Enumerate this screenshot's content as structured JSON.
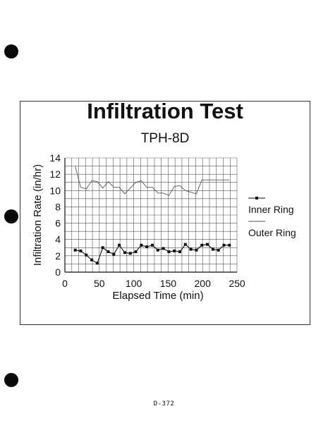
{
  "page": {
    "footer_text": "D-372"
  },
  "chart_data": {
    "type": "line",
    "title": "Infiltration Test",
    "subtitle": "TPH-8D",
    "xlabel": "Elapsed Time (min)",
    "ylabel": "Infiltration Rate (in/hr)",
    "xlim": [
      0,
      250
    ],
    "ylim": [
      0,
      14
    ],
    "xticks": [
      0,
      50,
      100,
      150,
      200,
      250
    ],
    "yticks": [
      0,
      2,
      4,
      6,
      8,
      10,
      12,
      14
    ],
    "grid": true,
    "legend_position": "right",
    "series": [
      {
        "name": "Inner Ring",
        "marker": "square",
        "color": "#111111",
        "x": [
          15,
          23,
          31,
          39,
          47,
          55,
          63,
          71,
          79,
          87,
          95,
          103,
          111,
          119,
          127,
          135,
          143,
          151,
          159,
          167,
          175,
          183,
          191,
          199,
          207,
          215,
          223,
          231,
          239
        ],
        "y": [
          2.7,
          2.6,
          2.1,
          1.5,
          1.1,
          3.0,
          2.5,
          2.2,
          3.3,
          2.4,
          2.3,
          2.5,
          3.3,
          3.1,
          3.3,
          2.7,
          2.9,
          2.5,
          2.6,
          2.5,
          3.4,
          2.8,
          2.7,
          3.3,
          3.4,
          2.8,
          2.7,
          3.3,
          3.3
        ]
      },
      {
        "name": "Outer Ring",
        "marker": "none",
        "color": "#555555",
        "x": [
          15,
          23,
          31,
          39,
          47,
          55,
          63,
          71,
          79,
          87,
          95,
          103,
          111,
          119,
          127,
          135,
          143,
          151,
          159,
          167,
          175,
          183,
          191,
          199,
          207,
          215,
          223,
          231,
          239
        ],
        "y": [
          13.0,
          10.4,
          10.2,
          11.2,
          11.1,
          10.3,
          11.1,
          10.4,
          10.4,
          9.6,
          10.3,
          11.0,
          11.2,
          10.4,
          10.4,
          9.7,
          9.7,
          9.4,
          10.5,
          10.6,
          10.0,
          9.8,
          9.6,
          11.3,
          11.3,
          11.3,
          11.3,
          11.3,
          11.3
        ]
      }
    ]
  }
}
